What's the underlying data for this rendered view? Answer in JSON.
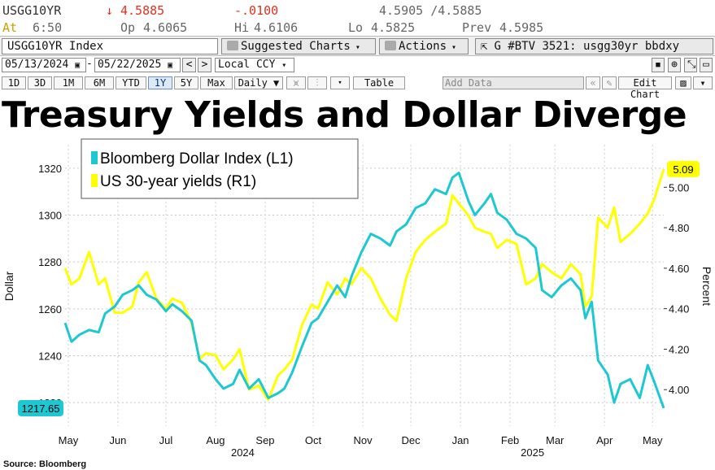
{
  "terminal": {
    "ticker": "USGG10YR",
    "arrow": "↓",
    "last": "4.5885",
    "change": "-.0100",
    "bid_ask": "4.5905 /4.5885",
    "time_label": "At",
    "time": "6:50",
    "open_label": "Op",
    "open": "4.6065",
    "high_label": "Hi",
    "high": "4.6106",
    "low_label": "Lo",
    "low": "4.5825",
    "prev_label": "Prev",
    "prev": "4.5985",
    "security": "USGG10YR Index",
    "suggested_charts": "Suggested Charts",
    "actions": "Actions",
    "btv": "G #BTV 3521: usgg30yr bbdxy",
    "start_date": "05/13/2024",
    "end_date": "05/22/2025",
    "currency": "Local CCY",
    "ranges": [
      "1D",
      "3D",
      "1M",
      "6M",
      "YTD",
      "1Y",
      "5Y",
      "Max"
    ],
    "active_range": "1Y",
    "period": "Daily",
    "table": "Table",
    "add_data_placeholder": "Add Data",
    "edit_chart": "Edit Chart"
  },
  "headline": "Treasury Yields and Dollar Diverge",
  "source": "Source: Bloomberg",
  "chart_data": {
    "type": "line",
    "ylabel_left": "Dollar",
    "ylabel_right": "Percent",
    "ylim_left": [
      1210,
      1330
    ],
    "yticks_left": [
      1220,
      1240,
      1260,
      1280,
      1300,
      1320
    ],
    "ylim_right": [
      3.82,
      5.21
    ],
    "yticks_right": [
      4.0,
      4.2,
      4.4,
      4.6,
      4.8,
      5.0
    ],
    "xlim": [
      "2024-05-13",
      "2025-05-22"
    ],
    "month_ticks": [
      {
        "label": "May",
        "date": "2024-05-15"
      },
      {
        "label": "Jun",
        "date": "2024-06-15"
      },
      {
        "label": "Jul",
        "date": "2024-07-15"
      },
      {
        "label": "Aug",
        "date": "2024-08-15"
      },
      {
        "label": "Sep",
        "date": "2024-09-15"
      },
      {
        "label": "Oct",
        "date": "2024-10-15"
      },
      {
        "label": "Nov",
        "date": "2024-11-15"
      },
      {
        "label": "Dec",
        "date": "2024-12-15"
      },
      {
        "label": "Jan",
        "date": "2025-01-15"
      },
      {
        "label": "Feb",
        "date": "2025-02-15"
      },
      {
        "label": "Mar",
        "date": "2025-03-15"
      },
      {
        "label": "Apr",
        "date": "2025-04-15"
      },
      {
        "label": "May",
        "date": "2025-05-15"
      }
    ],
    "year_labels": [
      {
        "label": "2024",
        "date": "2024-09-01"
      },
      {
        "label": "2025",
        "date": "2025-03-01"
      }
    ],
    "grid": true,
    "legend_position": "top-left",
    "series": [
      {
        "name": "Bloomberg Dollar Index (L1)",
        "axis": "left",
        "color": "#1ec8d2",
        "last_label": "1217.65",
        "points": [
          [
            "2024-05-13",
            1254
          ],
          [
            "2024-05-17",
            1246
          ],
          [
            "2024-05-22",
            1249
          ],
          [
            "2024-05-28",
            1251
          ],
          [
            "2024-06-03",
            1250
          ],
          [
            "2024-06-07",
            1258
          ],
          [
            "2024-06-13",
            1261
          ],
          [
            "2024-06-18",
            1266
          ],
          [
            "2024-06-24",
            1268
          ],
          [
            "2024-06-28",
            1270
          ],
          [
            "2024-07-03",
            1266
          ],
          [
            "2024-07-09",
            1264
          ],
          [
            "2024-07-15",
            1259
          ],
          [
            "2024-07-19",
            1262
          ],
          [
            "2024-07-25",
            1259
          ],
          [
            "2024-07-31",
            1255
          ],
          [
            "2024-08-05",
            1238
          ],
          [
            "2024-08-09",
            1236
          ],
          [
            "2024-08-15",
            1230
          ],
          [
            "2024-08-20",
            1226
          ],
          [
            "2024-08-26",
            1228
          ],
          [
            "2024-08-30",
            1234
          ],
          [
            "2024-09-05",
            1226
          ],
          [
            "2024-09-11",
            1230
          ],
          [
            "2024-09-17",
            1222
          ],
          [
            "2024-09-23",
            1224
          ],
          [
            "2024-09-27",
            1226
          ],
          [
            "2024-10-02",
            1233
          ],
          [
            "2024-10-08",
            1244
          ],
          [
            "2024-10-14",
            1254
          ],
          [
            "2024-10-18",
            1256
          ],
          [
            "2024-10-24",
            1263
          ],
          [
            "2024-10-30",
            1270
          ],
          [
            "2024-11-04",
            1265
          ],
          [
            "2024-11-08",
            1274
          ],
          [
            "2024-11-14",
            1284
          ],
          [
            "2024-11-20",
            1292
          ],
          [
            "2024-11-26",
            1290
          ],
          [
            "2024-12-02",
            1287
          ],
          [
            "2024-12-06",
            1293
          ],
          [
            "2024-12-12",
            1296
          ],
          [
            "2024-12-18",
            1303
          ],
          [
            "2024-12-24",
            1305
          ],
          [
            "2024-12-30",
            1311
          ],
          [
            "2025-01-06",
            1309
          ],
          [
            "2025-01-10",
            1316
          ],
          [
            "2025-01-14",
            1318
          ],
          [
            "2025-01-20",
            1306
          ],
          [
            "2025-01-24",
            1300
          ],
          [
            "2025-01-30",
            1305
          ],
          [
            "2025-02-03",
            1309
          ],
          [
            "2025-02-07",
            1301
          ],
          [
            "2025-02-13",
            1298
          ],
          [
            "2025-02-19",
            1292
          ],
          [
            "2025-02-25",
            1290
          ],
          [
            "2025-03-03",
            1286
          ],
          [
            "2025-03-07",
            1268
          ],
          [
            "2025-03-13",
            1265
          ],
          [
            "2025-03-19",
            1270
          ],
          [
            "2025-03-25",
            1273
          ],
          [
            "2025-03-31",
            1268
          ],
          [
            "2025-04-03",
            1256
          ],
          [
            "2025-04-07",
            1263
          ],
          [
            "2025-04-11",
            1238
          ],
          [
            "2025-04-17",
            1232
          ],
          [
            "2025-04-21",
            1220
          ],
          [
            "2025-04-25",
            1228
          ],
          [
            "2025-05-01",
            1230
          ],
          [
            "2025-05-07",
            1222
          ],
          [
            "2025-05-12",
            1236
          ],
          [
            "2025-05-16",
            1229
          ],
          [
            "2025-05-22",
            1217.65
          ]
        ]
      },
      {
        "name": "US 30-year yields  (R1)",
        "axis": "right",
        "color": "#ffff00",
        "last_label": "5.09",
        "points": [
          [
            "2024-05-13",
            4.6
          ],
          [
            "2024-05-17",
            4.52
          ],
          [
            "2024-05-22",
            4.55
          ],
          [
            "2024-05-28",
            4.68
          ],
          [
            "2024-06-03",
            4.52
          ],
          [
            "2024-06-07",
            4.55
          ],
          [
            "2024-06-13",
            4.38
          ],
          [
            "2024-06-18",
            4.38
          ],
          [
            "2024-06-24",
            4.41
          ],
          [
            "2024-06-28",
            4.53
          ],
          [
            "2024-07-03",
            4.58
          ],
          [
            "2024-07-09",
            4.45
          ],
          [
            "2024-07-15",
            4.4
          ],
          [
            "2024-07-19",
            4.45
          ],
          [
            "2024-07-25",
            4.43
          ],
          [
            "2024-07-31",
            4.33
          ],
          [
            "2024-08-05",
            4.15
          ],
          [
            "2024-08-09",
            4.18
          ],
          [
            "2024-08-15",
            4.17
          ],
          [
            "2024-08-20",
            4.1
          ],
          [
            "2024-08-26",
            4.15
          ],
          [
            "2024-08-30",
            4.2
          ],
          [
            "2024-09-05",
            4.0
          ],
          [
            "2024-09-11",
            4.02
          ],
          [
            "2024-09-17",
            3.95
          ],
          [
            "2024-09-23",
            4.07
          ],
          [
            "2024-09-27",
            4.1
          ],
          [
            "2024-10-02",
            4.15
          ],
          [
            "2024-10-08",
            4.32
          ],
          [
            "2024-10-14",
            4.42
          ],
          [
            "2024-10-18",
            4.4
          ],
          [
            "2024-10-24",
            4.53
          ],
          [
            "2024-10-30",
            4.47
          ],
          [
            "2024-11-04",
            4.55
          ],
          [
            "2024-11-08",
            4.52
          ],
          [
            "2024-11-14",
            4.6
          ],
          [
            "2024-11-20",
            4.55
          ],
          [
            "2024-11-26",
            4.45
          ],
          [
            "2024-12-02",
            4.37
          ],
          [
            "2024-12-06",
            4.34
          ],
          [
            "2024-12-12",
            4.55
          ],
          [
            "2024-12-18",
            4.68
          ],
          [
            "2024-12-24",
            4.74
          ],
          [
            "2024-12-30",
            4.78
          ],
          [
            "2025-01-06",
            4.82
          ],
          [
            "2025-01-10",
            4.96
          ],
          [
            "2025-01-14",
            4.92
          ],
          [
            "2025-01-20",
            4.86
          ],
          [
            "2025-01-24",
            4.8
          ],
          [
            "2025-01-30",
            4.78
          ],
          [
            "2025-02-03",
            4.77
          ],
          [
            "2025-02-07",
            4.7
          ],
          [
            "2025-02-13",
            4.74
          ],
          [
            "2025-02-19",
            4.72
          ],
          [
            "2025-02-25",
            4.52
          ],
          [
            "2025-03-03",
            4.55
          ],
          [
            "2025-03-07",
            4.62
          ],
          [
            "2025-03-13",
            4.58
          ],
          [
            "2025-03-19",
            4.55
          ],
          [
            "2025-03-25",
            4.62
          ],
          [
            "2025-03-31",
            4.57
          ],
          [
            "2025-04-03",
            4.41
          ],
          [
            "2025-04-07",
            4.46
          ],
          [
            "2025-04-11",
            4.85
          ],
          [
            "2025-04-17",
            4.8
          ],
          [
            "2025-04-21",
            4.9
          ],
          [
            "2025-04-25",
            4.73
          ],
          [
            "2025-05-01",
            4.77
          ],
          [
            "2025-05-07",
            4.82
          ],
          [
            "2025-05-12",
            4.87
          ],
          [
            "2025-05-16",
            4.94
          ],
          [
            "2025-05-22",
            5.09
          ]
        ]
      }
    ]
  }
}
